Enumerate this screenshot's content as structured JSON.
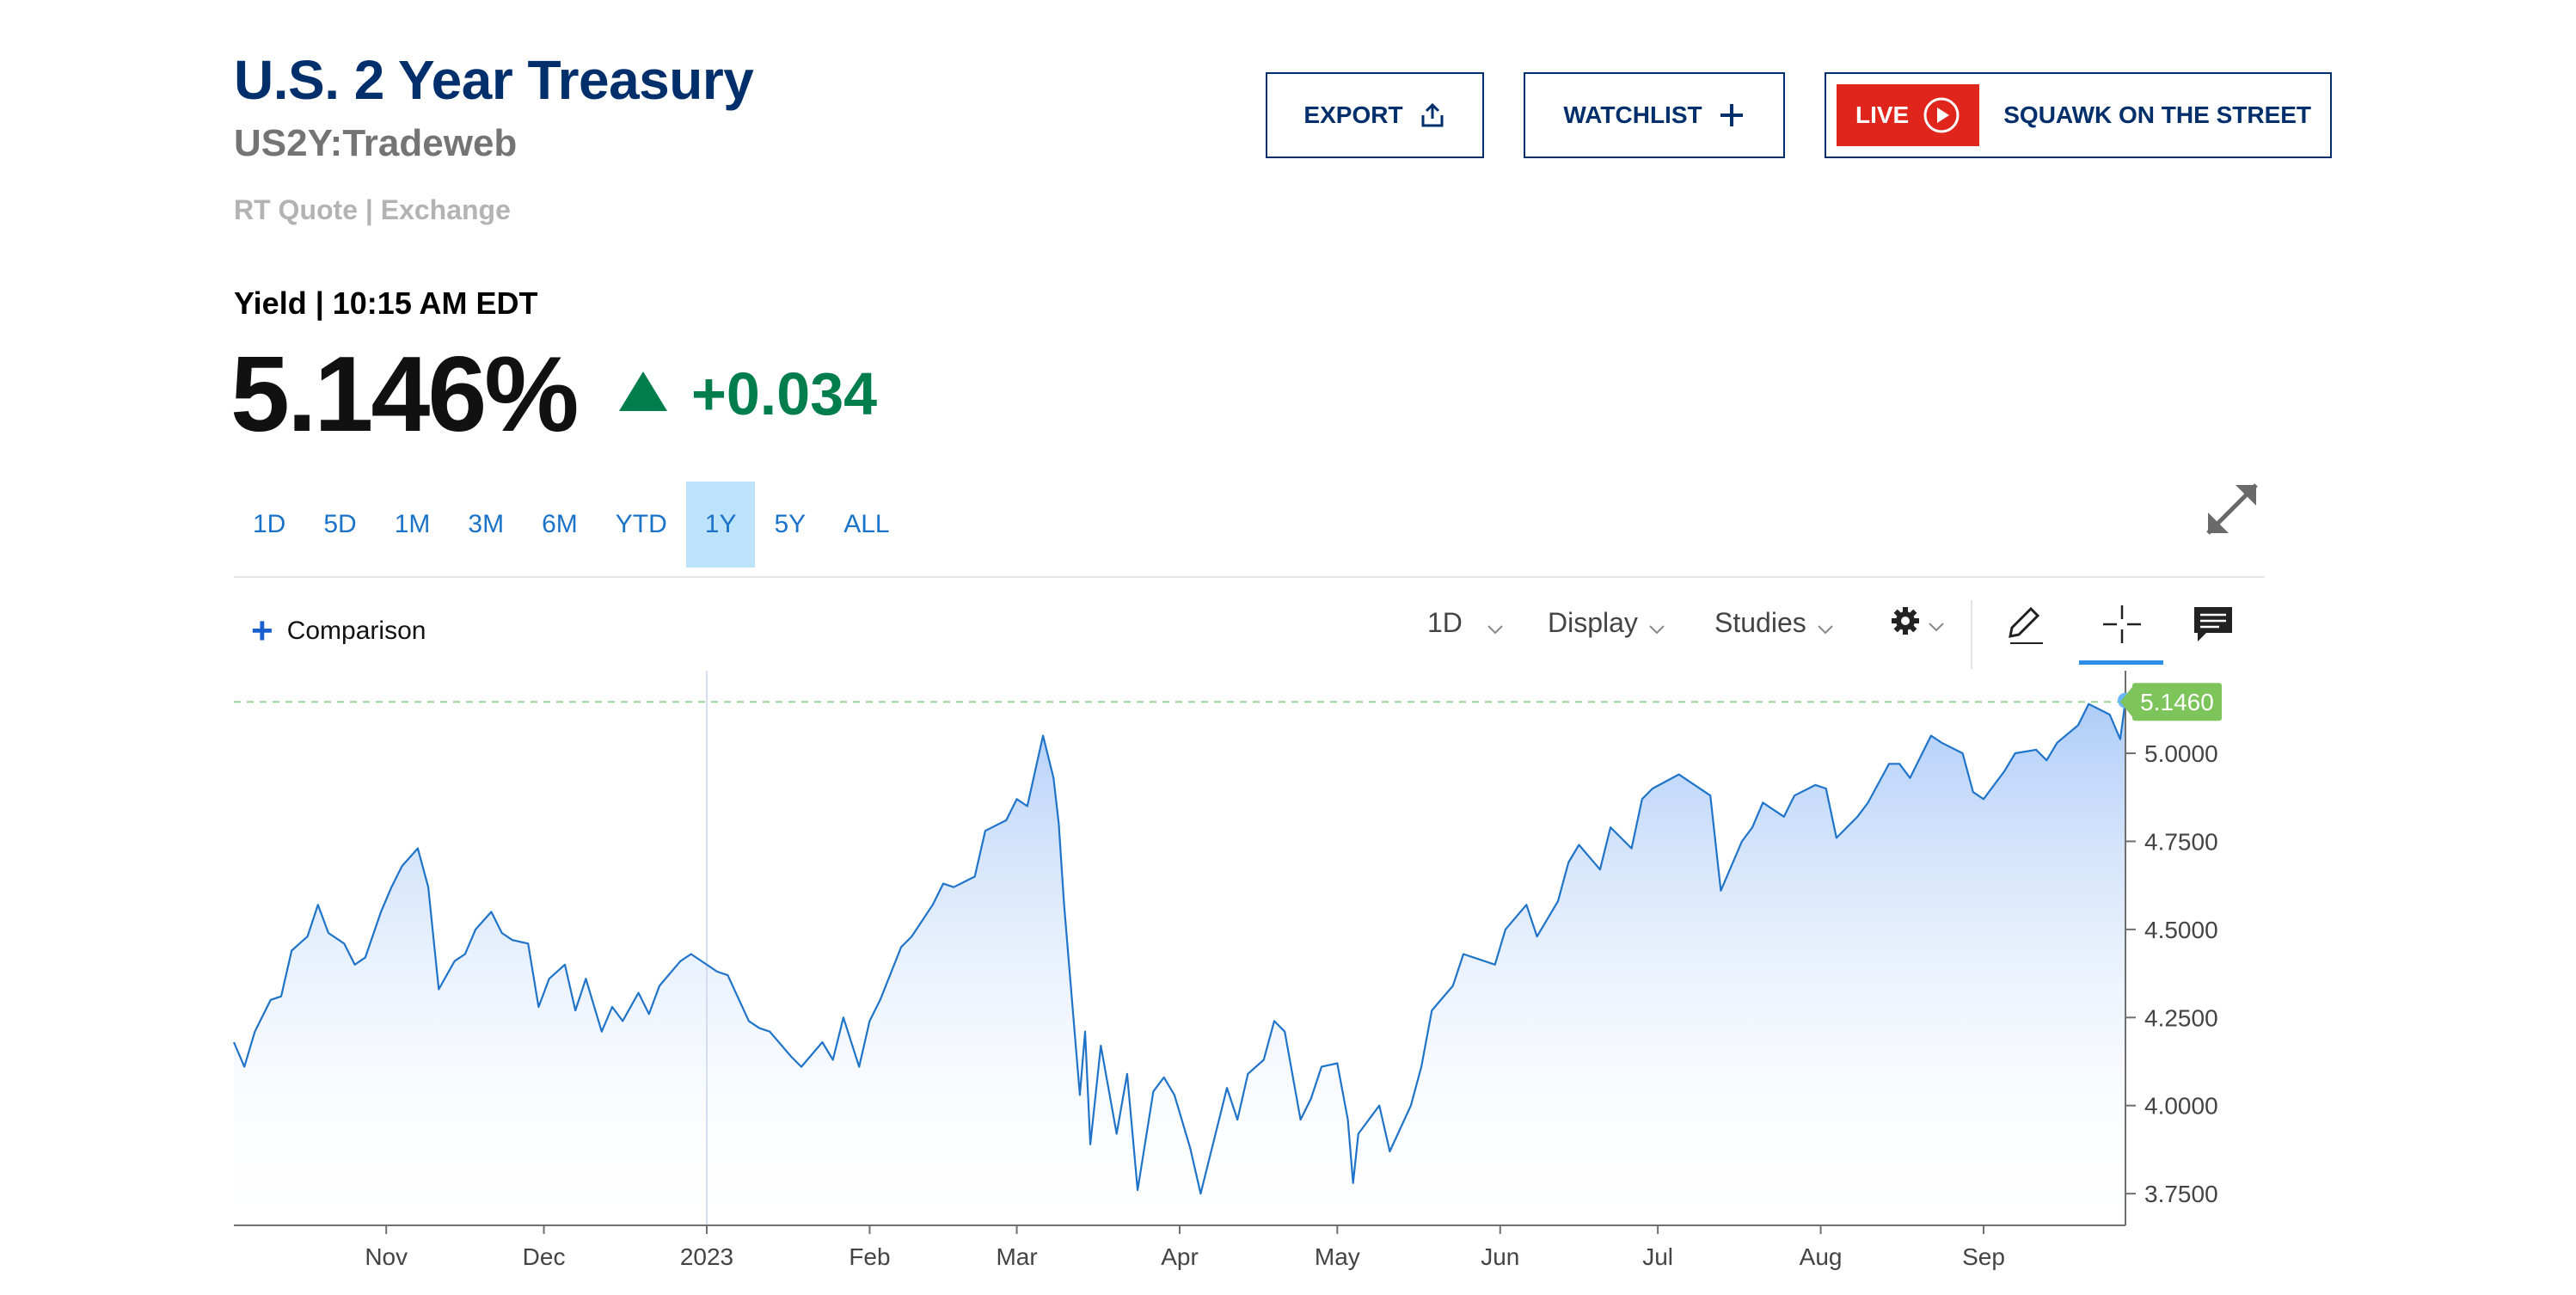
{
  "header": {
    "title": "U.S. 2 Year Treasury",
    "symbol": "US2Y:Tradeweb",
    "quote_source": "RT Quote | Exchange"
  },
  "buttons": {
    "export_label": "EXPORT",
    "watchlist_label": "WATCHLIST",
    "live_label": "LIVE",
    "squawk_label": "SQUAWK ON THE STREET"
  },
  "quote": {
    "yield_line": "Yield | 10:15 AM EDT",
    "price": "5.146%",
    "change": "+0.034"
  },
  "ranges": [
    "1D",
    "5D",
    "1M",
    "3M",
    "6M",
    "YTD",
    "1Y",
    "5Y",
    "ALL"
  ],
  "active_range": "1Y",
  "toolbar": {
    "comparison_label": "Comparison",
    "interval_label": "1D",
    "display_label": "Display",
    "studies_label": "Studies"
  },
  "colors": {
    "title": "#002f6c",
    "positive": "#007d4c",
    "live_red": "#e0261c",
    "line": "#1f74c9",
    "fill_top": "#a9c9f7",
    "last_price_tag": "#7dc45a",
    "range_active_bg": "#bde3fb"
  },
  "icons": {
    "export": "share-upload-icon",
    "watchlist": "plus-icon",
    "live": "play-circle-icon",
    "expand": "expand-arrows-icon",
    "settings": "gear-icon",
    "draw": "pencil-icon",
    "crosshair": "crosshair-icon",
    "comment": "comment-icon"
  },
  "chart_data": {
    "type": "area",
    "x_start": "2022-10-03",
    "x_end": "2023-09-28",
    "x_tick_labels": [
      "Nov",
      "Dec",
      "2023",
      "Feb",
      "Mar",
      "Apr",
      "May",
      "Jun",
      "Jul",
      "Aug",
      "Sep"
    ],
    "x_tick_dates": [
      "2022-11-01",
      "2022-12-01",
      "2023-01-01",
      "2023-02-01",
      "2023-03-01",
      "2023-04-01",
      "2023-05-01",
      "2023-06-01",
      "2023-07-01",
      "2023-08-01",
      "2023-09-01"
    ],
    "y_tick_labels": [
      "3.7500",
      "4.0000",
      "4.2500",
      "4.5000",
      "4.7500",
      "5.0000"
    ],
    "y_ticks": [
      3.75,
      4.0,
      4.25,
      4.5,
      4.75,
      5.0
    ],
    "ylim": [
      3.66,
      5.21
    ],
    "last_value": 5.146,
    "last_value_label": "5.1460",
    "crosshair_date": "2023-01-01",
    "dates": [
      "2022-10-03",
      "2022-10-05",
      "2022-10-07",
      "2022-10-10",
      "2022-10-12",
      "2022-10-14",
      "2022-10-17",
      "2022-10-19",
      "2022-10-21",
      "2022-10-24",
      "2022-10-26",
      "2022-10-28",
      "2022-10-31",
      "2022-11-02",
      "2022-11-04",
      "2022-11-07",
      "2022-11-09",
      "2022-11-11",
      "2022-11-14",
      "2022-11-16",
      "2022-11-18",
      "2022-11-21",
      "2022-11-23",
      "2022-11-25",
      "2022-11-28",
      "2022-11-30",
      "2022-12-02",
      "2022-12-05",
      "2022-12-07",
      "2022-12-09",
      "2022-12-12",
      "2022-12-14",
      "2022-12-16",
      "2022-12-19",
      "2022-12-21",
      "2022-12-23",
      "2022-12-27",
      "2022-12-29",
      "2023-01-03",
      "2023-01-05",
      "2023-01-09",
      "2023-01-11",
      "2023-01-13",
      "2023-01-17",
      "2023-01-19",
      "2023-01-23",
      "2023-01-25",
      "2023-01-27",
      "2023-01-30",
      "2023-02-01",
      "2023-02-03",
      "2023-02-07",
      "2023-02-09",
      "2023-02-13",
      "2023-02-15",
      "2023-02-17",
      "2023-02-21",
      "2023-02-23",
      "2023-02-27",
      "2023-03-01",
      "2023-03-03",
      "2023-03-06",
      "2023-03-08",
      "2023-03-09",
      "2023-03-10",
      "2023-03-13",
      "2023-03-14",
      "2023-03-15",
      "2023-03-17",
      "2023-03-20",
      "2023-03-22",
      "2023-03-24",
      "2023-03-27",
      "2023-03-29",
      "2023-03-31",
      "2023-04-03",
      "2023-04-05",
      "2023-04-10",
      "2023-04-12",
      "2023-04-14",
      "2023-04-17",
      "2023-04-19",
      "2023-04-21",
      "2023-04-24",
      "2023-04-26",
      "2023-04-28",
      "2023-05-01",
      "2023-05-03",
      "2023-05-04",
      "2023-05-05",
      "2023-05-09",
      "2023-05-11",
      "2023-05-15",
      "2023-05-17",
      "2023-05-19",
      "2023-05-23",
      "2023-05-25",
      "2023-05-31",
      "2023-06-02",
      "2023-06-06",
      "2023-06-08",
      "2023-06-12",
      "2023-06-14",
      "2023-06-16",
      "2023-06-20",
      "2023-06-22",
      "2023-06-26",
      "2023-06-28",
      "2023-06-30",
      "2023-07-05",
      "2023-07-07",
      "2023-07-11",
      "2023-07-13",
      "2023-07-17",
      "2023-07-19",
      "2023-07-21",
      "2023-07-25",
      "2023-07-27",
      "2023-07-31",
      "2023-08-02",
      "2023-08-04",
      "2023-08-08",
      "2023-08-10",
      "2023-08-14",
      "2023-08-16",
      "2023-08-18",
      "2023-08-22",
      "2023-08-24",
      "2023-08-28",
      "2023-08-30",
      "2023-09-01",
      "2023-09-05",
      "2023-09-07",
      "2023-09-11",
      "2023-09-13",
      "2023-09-15",
      "2023-09-19",
      "2023-09-21",
      "2023-09-25",
      "2023-09-27",
      "2023-09-28"
    ],
    "values": [
      4.18,
      4.11,
      4.21,
      4.3,
      4.31,
      4.44,
      4.48,
      4.57,
      4.49,
      4.46,
      4.4,
      4.42,
      4.55,
      4.62,
      4.68,
      4.73,
      4.62,
      4.33,
      4.41,
      4.43,
      4.5,
      4.55,
      4.49,
      4.47,
      4.46,
      4.28,
      4.36,
      4.4,
      4.27,
      4.36,
      4.21,
      4.28,
      4.24,
      4.32,
      4.26,
      4.34,
      4.41,
      4.43,
      4.38,
      4.37,
      4.24,
      4.22,
      4.21,
      4.14,
      4.11,
      4.18,
      4.13,
      4.25,
      4.11,
      4.24,
      4.3,
      4.45,
      4.48,
      4.57,
      4.63,
      4.62,
      4.65,
      4.78,
      4.81,
      4.87,
      4.85,
      5.05,
      4.93,
      4.8,
      4.57,
      4.03,
      4.21,
      3.89,
      4.17,
      3.92,
      4.09,
      3.76,
      4.04,
      4.08,
      4.03,
      3.88,
      3.75,
      4.05,
      3.96,
      4.09,
      4.13,
      4.24,
      4.21,
      3.96,
      4.02,
      4.11,
      4.12,
      3.96,
      3.78,
      3.92,
      4.0,
      3.87,
      4.0,
      4.11,
      4.27,
      4.34,
      4.43,
      4.4,
      4.5,
      4.57,
      4.48,
      4.58,
      4.69,
      4.74,
      4.67,
      4.79,
      4.73,
      4.87,
      4.9,
      4.94,
      4.92,
      4.88,
      4.61,
      4.75,
      4.79,
      4.86,
      4.82,
      4.88,
      4.91,
      4.9,
      4.76,
      4.82,
      4.86,
      4.97,
      4.97,
      4.93,
      5.05,
      5.03,
      5.0,
      4.89,
      4.87,
      4.95,
      5.0,
      5.01,
      4.98,
      5.03,
      5.08,
      5.14,
      5.11,
      5.04,
      5.15
    ]
  }
}
